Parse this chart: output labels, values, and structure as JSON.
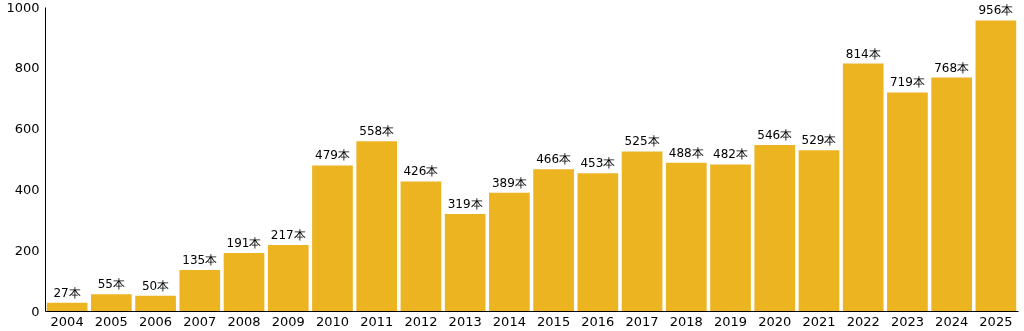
{
  "chart_data": {
    "type": "bar",
    "categories": [
      "2004",
      "2005",
      "2006",
      "2007",
      "2008",
      "2009",
      "2010",
      "2011",
      "2012",
      "2013",
      "2014",
      "2015",
      "2016",
      "2017",
      "2018",
      "2019",
      "2020",
      "2021",
      "2022",
      "2023",
      "2024",
      "2025"
    ],
    "values": [
      27,
      55,
      50,
      135,
      191,
      217,
      479,
      558,
      426,
      319,
      389,
      466,
      453,
      525,
      488,
      482,
      546,
      529,
      814,
      719,
      768,
      956
    ],
    "value_labels": [
      "27本",
      "55本",
      "50本",
      "135本",
      "191本",
      "217本",
      "479本",
      "558本",
      "426本",
      "319本",
      "389本",
      "466本",
      "453本",
      "525本",
      "488本",
      "482本",
      "546本",
      "529本",
      "814本",
      "719本",
      "768本",
      "956本"
    ],
    "color": "#edb422",
    "ylim": [
      0,
      1000
    ],
    "yticks": [
      0,
      200,
      400,
      600,
      800,
      1000
    ],
    "grid": false
  }
}
